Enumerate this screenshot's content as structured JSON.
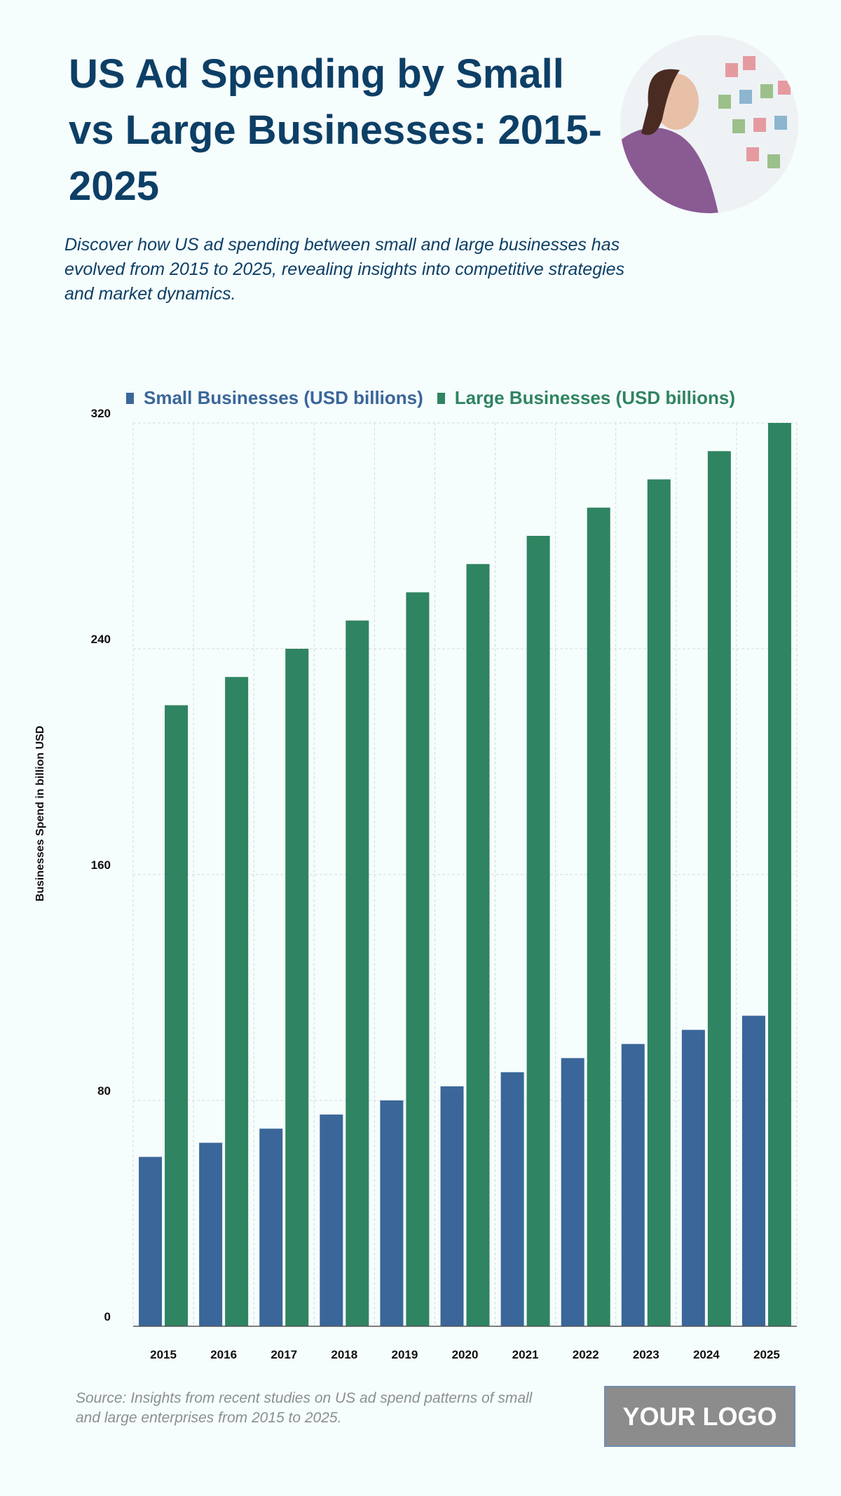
{
  "header": {
    "title": "US Ad Spending by Small vs Large Businesses: 2015-2025",
    "subtitle": "Discover how US ad spending between small and large businesses has evolved from 2015 to 2025, revealing insights into competitive strategies and market dynamics."
  },
  "footer": {
    "source": "Source: Insights from recent studies on US ad spend patterns of small and large enterprises from 2015 to 2025.",
    "logo": "YOUR LOGO"
  },
  "colors": {
    "small": "#3a6699",
    "large": "#2f8461",
    "title": "#0d3f66"
  },
  "chart_data": {
    "type": "bar",
    "title": "US Ad Spending by Small vs Large Businesses: 2015-2025",
    "xlabel": "",
    "ylabel": "Businesses Spend in billion USD",
    "ylim": [
      0,
      320
    ],
    "yticks": [
      0,
      80,
      160,
      240,
      320
    ],
    "grid": true,
    "legend_position": "top",
    "categories": [
      "2015",
      "2016",
      "2017",
      "2018",
      "2019",
      "2020",
      "2021",
      "2022",
      "2023",
      "2024",
      "2025"
    ],
    "series": [
      {
        "name": "Small Businesses (USD billions)",
        "values": [
          60,
          65,
          70,
          75,
          80,
          85,
          90,
          95,
          100,
          105,
          110
        ]
      },
      {
        "name": "Large Businesses (USD billions)",
        "values": [
          220,
          230,
          240,
          250,
          260,
          270,
          280,
          290,
          300,
          310,
          320
        ]
      }
    ]
  }
}
